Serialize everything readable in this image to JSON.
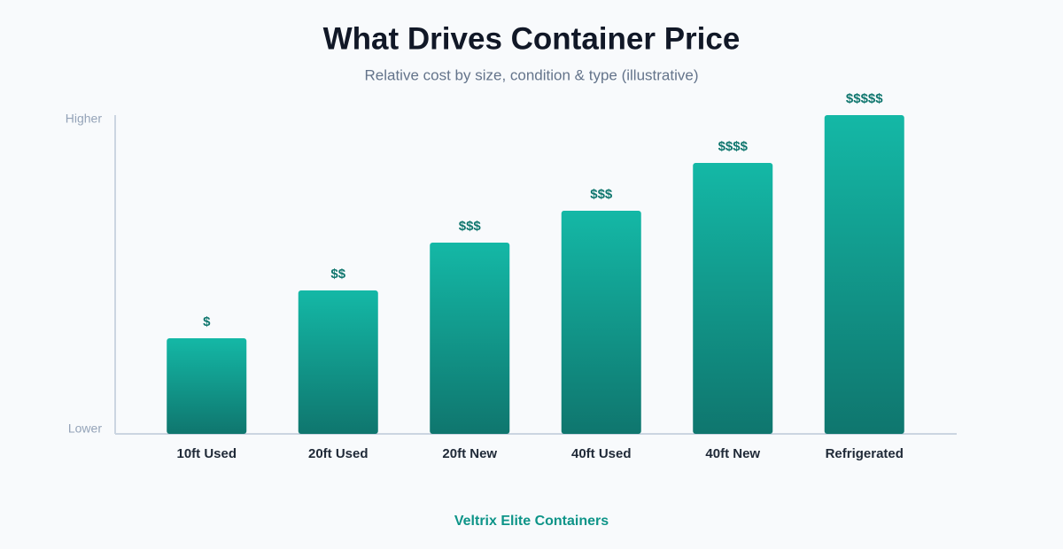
{
  "chart_data": {
    "type": "bar",
    "title": "What Drives Container Price",
    "subtitle": "Relative cost by size, condition & type (illustrative)",
    "categories": [
      "10ft Used",
      "20ft Used",
      "20ft New",
      "40ft Used",
      "40ft New",
      "Refrigerated"
    ],
    "values": [
      30,
      45,
      60,
      70,
      85,
      100
    ],
    "value_labels": [
      "$",
      "$$",
      "$$$",
      "$$$",
      "$$$$",
      "$$$$$"
    ],
    "colors": [
      "#14b8a6",
      "#0f766e"
    ],
    "ylim": [
      0,
      100
    ],
    "yticks": [
      {
        "value": 0,
        "label": "Lower"
      },
      {
        "value": 100,
        "label": "Higher"
      }
    ],
    "grid": false,
    "footer": "Veltrix Elite Containers"
  }
}
